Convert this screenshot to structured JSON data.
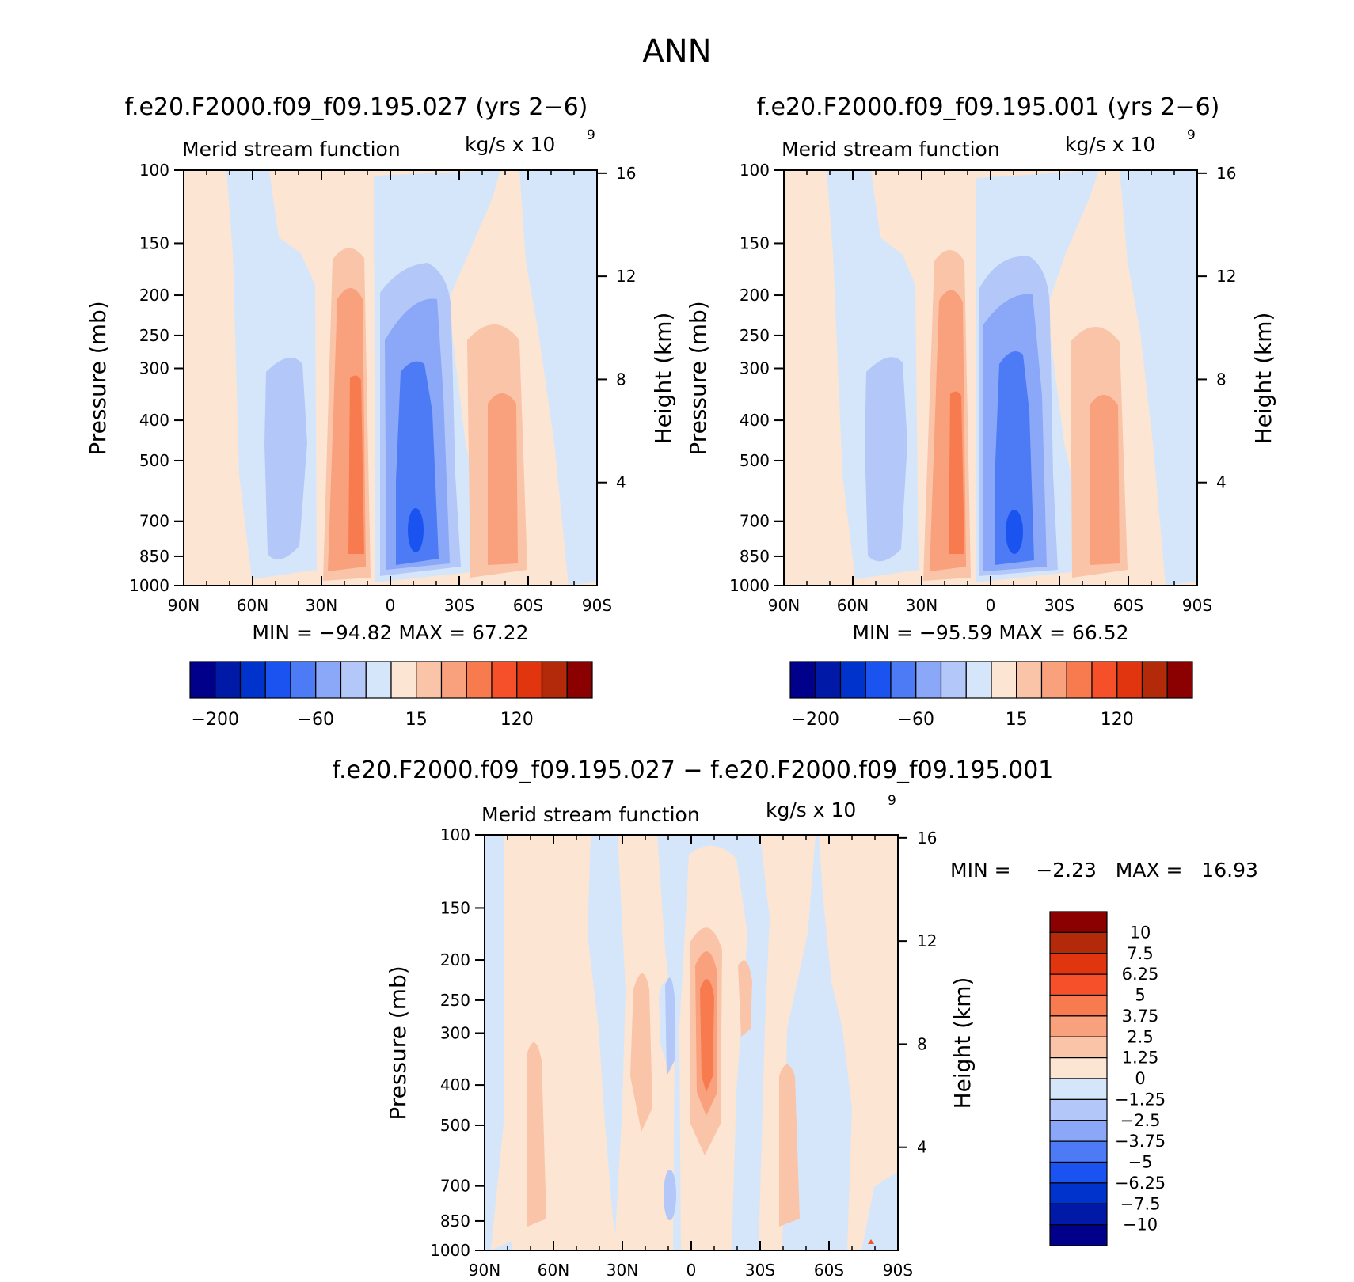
{
  "page_title": "ANN",
  "colors": {
    "negative_scale": [
      "#00008a",
      "#0019a6",
      "#0033cc",
      "#1a53f0",
      "#4d7af5",
      "#8aa8f7",
      "#b3c8f8",
      "#d6e6fa"
    ],
    "positive_scale": [
      "#fce5d3",
      "#fac4a8",
      "#f9a07c",
      "#f77b4e",
      "#f6502a",
      "#e0350f",
      "#b22a0a",
      "#8b0000"
    ]
  },
  "panels": [
    {
      "title": "f.e20.F2000.f09_f09.195.027 (yrs 2−6)",
      "variable_label": "Merid stream function",
      "units_label": "kg/s x 10",
      "units_exp": "9",
      "ylabel": "Pressure (mb)",
      "y2label": "Height (km)",
      "stats": "MIN = −94.82   MAX =   67.22"
    },
    {
      "title": "f.e20.F2000.f09_f09.195.001 (yrs 2−6)",
      "variable_label": "Merid stream function",
      "units_label": "kg/s x 10",
      "units_exp": "9",
      "ylabel": "Pressure (mb)",
      "y2label": "Height (km)",
      "stats": "MIN = −95.59   MAX =   66.52"
    },
    {
      "title": "f.e20.F2000.f09_f09.195.027 − f.e20.F2000.f09_f09.195.001",
      "variable_label": "Merid stream function",
      "units_label": "kg/s x 10",
      "units_exp": "9",
      "ylabel": "Pressure (mb)",
      "y2label": "Height (km)",
      "stats": "MIN =    −2.23   MAX =   16.93"
    }
  ],
  "chart_data": [
    {
      "type": "heatmap",
      "title": "f.e20.F2000.f09_f09.195.027 (yrs 2−6)",
      "xlabel": "",
      "ylabel": "Pressure (mb)",
      "y2label": "Height (km)",
      "x_ticks": [
        "90N",
        "60N",
        "30N",
        "0",
        "30S",
        "60S",
        "90S"
      ],
      "y_ticks": [
        100,
        150,
        200,
        250,
        300,
        400,
        500,
        700,
        850,
        1000
      ],
      "y2_ticks": [
        16,
        12,
        8,
        4
      ],
      "ylim": [
        1000,
        100
      ],
      "y_scale": "log",
      "colorbar_ticks": [
        "−200",
        "−60",
        "15",
        "120"
      ],
      "min": -94.82,
      "max": 67.22,
      "cells": [
        {
          "lat": -57,
          "p": 700,
          "value": 0
        },
        {
          "lat": -48,
          "p": 500,
          "value": -15
        },
        {
          "lat": -15,
          "p": 500,
          "value": 60
        },
        {
          "lat": 12,
          "p": 700,
          "value": -90
        },
        {
          "lat": 47,
          "p": 500,
          "value": 40
        }
      ]
    },
    {
      "type": "heatmap",
      "title": "f.e20.F2000.f09_f09.195.001 (yrs 2−6)",
      "xlabel": "",
      "ylabel": "Pressure (mb)",
      "y2label": "Height (km)",
      "x_ticks": [
        "90N",
        "60N",
        "30N",
        "0",
        "30S",
        "60S",
        "90S"
      ],
      "y_ticks": [
        100,
        150,
        200,
        250,
        300,
        400,
        500,
        700,
        850,
        1000
      ],
      "y2_ticks": [
        16,
        12,
        8,
        4
      ],
      "ylim": [
        1000,
        100
      ],
      "y_scale": "log",
      "colorbar_ticks": [
        "−200",
        "−60",
        "15",
        "120"
      ],
      "min": -95.59,
      "max": 66.52,
      "cells": [
        {
          "lat": -48,
          "p": 500,
          "value": -15
        },
        {
          "lat": -15,
          "p": 500,
          "value": 60
        },
        {
          "lat": 10,
          "p": 700,
          "value": -90
        },
        {
          "lat": 48,
          "p": 500,
          "value": 40
        }
      ]
    },
    {
      "type": "heatmap",
      "title": "f.e20.F2000.f09_f09.195.027 − f.e20.F2000.f09_f09.195.001",
      "xlabel": "",
      "ylabel": "Pressure (mb)",
      "y2label": "Height (km)",
      "x_ticks": [
        "90N",
        "60N",
        "30N",
        "0",
        "30S",
        "60S",
        "90S"
      ],
      "y_ticks": [
        100,
        150,
        200,
        250,
        300,
        400,
        500,
        700,
        850,
        1000
      ],
      "y2_ticks": [
        16,
        12,
        8,
        4
      ],
      "ylim": [
        1000,
        100
      ],
      "y_scale": "log",
      "colorbar_ticks": [
        "10",
        "7.5",
        "6.25",
        "5",
        "3.75",
        "2.5",
        "1.25",
        "0",
        "−1.25",
        "−2.5",
        "−3.75",
        "−5",
        "−6.25",
        "−7.5",
        "−10"
      ],
      "min": -2.23,
      "max": 16.93,
      "cells": [
        {
          "lat": 6,
          "p": 300,
          "value": 6
        },
        {
          "lat": -20,
          "p": 350,
          "value": 2
        },
        {
          "lat": -70,
          "p": 600,
          "value": 1.5
        },
        {
          "lat": 43,
          "p": 600,
          "value": 1.5
        },
        {
          "lat": -9,
          "p": 850,
          "value": -1.5
        }
      ]
    }
  ]
}
